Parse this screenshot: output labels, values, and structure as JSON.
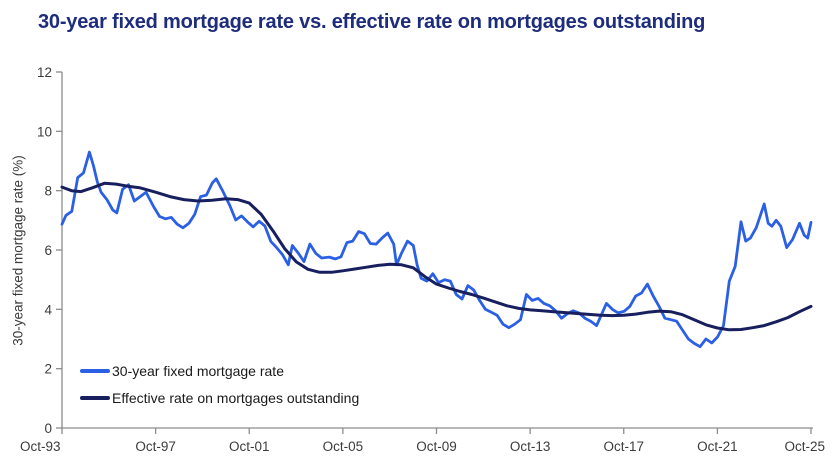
{
  "title": "30-year fixed mortgage rate vs. effective rate on mortgages outstanding",
  "colors": {
    "title": "#1e2c7c",
    "background": "#ffffff",
    "axis": "#8c8c8c",
    "tick_label": "#3c3c3c",
    "legend_text": "#1a1a1a",
    "fixed_rate_blue": "#2b60e4",
    "effective_rate_navy": "#171f5e"
  },
  "chart_data": {
    "type": "line",
    "title": "30-year fixed mortgage rate vs. effective rate on mortgages outstanding",
    "xlabel": "",
    "ylabel": "30-year fixed mortgage rate (%)",
    "ylim": [
      0,
      12
    ],
    "xlim": [
      1993.79,
      2025.79
    ],
    "grid": false,
    "legend_position": "inside-bottom-left",
    "y_ticks": [
      0,
      2,
      4,
      6,
      8,
      10,
      12
    ],
    "x_ticks": [
      {
        "x": 1993.79,
        "label": "Oct-93"
      },
      {
        "x": 1997.79,
        "label": "Oct-97"
      },
      {
        "x": 2001.79,
        "label": "Oct-01"
      },
      {
        "x": 2005.79,
        "label": "Oct-05"
      },
      {
        "x": 2009.79,
        "label": "Oct-09"
      },
      {
        "x": 2013.79,
        "label": "Oct-13"
      },
      {
        "x": 2017.79,
        "label": "Oct-17"
      },
      {
        "x": 2021.79,
        "label": "Oct-21"
      },
      {
        "x": 2025.79,
        "label": "Oct-25"
      }
    ],
    "series": [
      {
        "name": "30-year fixed mortgage rate",
        "color": "#2b60e4",
        "width": 2.8,
        "points": [
          [
            1993.79,
            6.87
          ],
          [
            1993.96,
            7.17
          ],
          [
            1994.21,
            7.3
          ],
          [
            1994.46,
            8.44
          ],
          [
            1994.71,
            8.6
          ],
          [
            1994.96,
            9.3
          ],
          [
            1995.13,
            8.85
          ],
          [
            1995.3,
            8.3
          ],
          [
            1995.46,
            7.95
          ],
          [
            1995.71,
            7.7
          ],
          [
            1995.96,
            7.35
          ],
          [
            1996.13,
            7.25
          ],
          [
            1996.38,
            8.05
          ],
          [
            1996.63,
            8.2
          ],
          [
            1996.88,
            7.65
          ],
          [
            1997.13,
            7.8
          ],
          [
            1997.38,
            7.95
          ],
          [
            1997.71,
            7.45
          ],
          [
            1997.96,
            7.13
          ],
          [
            1998.21,
            7.05
          ],
          [
            1998.46,
            7.1
          ],
          [
            1998.71,
            6.87
          ],
          [
            1998.96,
            6.75
          ],
          [
            1999.21,
            6.9
          ],
          [
            1999.46,
            7.2
          ],
          [
            1999.71,
            7.8
          ],
          [
            1999.96,
            7.85
          ],
          [
            2000.21,
            8.26
          ],
          [
            2000.38,
            8.4
          ],
          [
            2000.63,
            8.03
          ],
          [
            2000.96,
            7.5
          ],
          [
            2001.21,
            7.01
          ],
          [
            2001.46,
            7.15
          ],
          [
            2001.71,
            6.95
          ],
          [
            2001.96,
            6.78
          ],
          [
            2002.21,
            6.97
          ],
          [
            2002.46,
            6.81
          ],
          [
            2002.71,
            6.29
          ],
          [
            2002.96,
            6.08
          ],
          [
            2003.21,
            5.84
          ],
          [
            2003.46,
            5.5
          ],
          [
            2003.63,
            6.15
          ],
          [
            2003.88,
            5.9
          ],
          [
            2004.13,
            5.61
          ],
          [
            2004.38,
            6.2
          ],
          [
            2004.63,
            5.89
          ],
          [
            2004.88,
            5.73
          ],
          [
            2005.21,
            5.76
          ],
          [
            2005.46,
            5.7
          ],
          [
            2005.71,
            5.77
          ],
          [
            2005.96,
            6.25
          ],
          [
            2006.21,
            6.3
          ],
          [
            2006.46,
            6.62
          ],
          [
            2006.71,
            6.55
          ],
          [
            2006.96,
            6.22
          ],
          [
            2007.21,
            6.2
          ],
          [
            2007.46,
            6.4
          ],
          [
            2007.71,
            6.57
          ],
          [
            2007.96,
            6.2
          ],
          [
            2008.08,
            5.5
          ],
          [
            2008.3,
            5.9
          ],
          [
            2008.55,
            6.3
          ],
          [
            2008.8,
            6.15
          ],
          [
            2008.96,
            5.5
          ],
          [
            2009.13,
            5.05
          ],
          [
            2009.38,
            4.95
          ],
          [
            2009.63,
            5.2
          ],
          [
            2009.88,
            4.9
          ],
          [
            2010.13,
            5.0
          ],
          [
            2010.38,
            4.95
          ],
          [
            2010.63,
            4.5
          ],
          [
            2010.88,
            4.35
          ],
          [
            2011.13,
            4.8
          ],
          [
            2011.38,
            4.65
          ],
          [
            2011.63,
            4.3
          ],
          [
            2011.88,
            4.0
          ],
          [
            2012.13,
            3.9
          ],
          [
            2012.38,
            3.8
          ],
          [
            2012.63,
            3.5
          ],
          [
            2012.88,
            3.38
          ],
          [
            2013.13,
            3.5
          ],
          [
            2013.38,
            3.65
          ],
          [
            2013.63,
            4.5
          ],
          [
            2013.88,
            4.3
          ],
          [
            2014.13,
            4.37
          ],
          [
            2014.38,
            4.2
          ],
          [
            2014.63,
            4.12
          ],
          [
            2014.88,
            3.95
          ],
          [
            2015.13,
            3.7
          ],
          [
            2015.38,
            3.85
          ],
          [
            2015.63,
            3.95
          ],
          [
            2015.88,
            3.88
          ],
          [
            2016.13,
            3.7
          ],
          [
            2016.38,
            3.6
          ],
          [
            2016.63,
            3.45
          ],
          [
            2016.88,
            3.9
          ],
          [
            2017.05,
            4.2
          ],
          [
            2017.3,
            4.0
          ],
          [
            2017.55,
            3.88
          ],
          [
            2017.8,
            3.93
          ],
          [
            2018.05,
            4.1
          ],
          [
            2018.3,
            4.45
          ],
          [
            2018.55,
            4.55
          ],
          [
            2018.8,
            4.85
          ],
          [
            2019.05,
            4.45
          ],
          [
            2019.3,
            4.1
          ],
          [
            2019.55,
            3.7
          ],
          [
            2019.8,
            3.65
          ],
          [
            2020.05,
            3.6
          ],
          [
            2020.3,
            3.3
          ],
          [
            2020.55,
            3.0
          ],
          [
            2020.8,
            2.85
          ],
          [
            2021.05,
            2.74
          ],
          [
            2021.3,
            3.0
          ],
          [
            2021.55,
            2.87
          ],
          [
            2021.8,
            3.07
          ],
          [
            2022.05,
            3.45
          ],
          [
            2022.3,
            4.95
          ],
          [
            2022.55,
            5.45
          ],
          [
            2022.8,
            6.95
          ],
          [
            2023.0,
            6.3
          ],
          [
            2023.2,
            6.4
          ],
          [
            2023.45,
            6.75
          ],
          [
            2023.6,
            7.1
          ],
          [
            2023.79,
            7.55
          ],
          [
            2023.96,
            6.9
          ],
          [
            2024.12,
            6.8
          ],
          [
            2024.3,
            7.0
          ],
          [
            2024.5,
            6.8
          ],
          [
            2024.75,
            6.08
          ],
          [
            2025.0,
            6.35
          ],
          [
            2025.3,
            6.9
          ],
          [
            2025.5,
            6.5
          ],
          [
            2025.65,
            6.4
          ],
          [
            2025.79,
            6.93
          ]
        ]
      },
      {
        "name": "Effective rate on mortgages outstanding",
        "color": "#171f5e",
        "width": 3,
        "points": [
          [
            1993.79,
            8.12
          ],
          [
            1994.2,
            8.0
          ],
          [
            1994.6,
            7.97
          ],
          [
            1995.1,
            8.1
          ],
          [
            1995.6,
            8.25
          ],
          [
            1996.1,
            8.22
          ],
          [
            1996.6,
            8.15
          ],
          [
            1997.1,
            8.1
          ],
          [
            1997.79,
            7.95
          ],
          [
            1998.4,
            7.8
          ],
          [
            1999.0,
            7.7
          ],
          [
            1999.6,
            7.65
          ],
          [
            2000.2,
            7.68
          ],
          [
            2000.8,
            7.73
          ],
          [
            2001.3,
            7.7
          ],
          [
            2001.79,
            7.58
          ],
          [
            2002.3,
            7.2
          ],
          [
            2002.8,
            6.65
          ],
          [
            2003.3,
            6.05
          ],
          [
            2003.8,
            5.6
          ],
          [
            2004.3,
            5.35
          ],
          [
            2004.8,
            5.25
          ],
          [
            2005.3,
            5.25
          ],
          [
            2005.79,
            5.3
          ],
          [
            2006.3,
            5.36
          ],
          [
            2006.8,
            5.42
          ],
          [
            2007.3,
            5.48
          ],
          [
            2007.8,
            5.52
          ],
          [
            2008.3,
            5.5
          ],
          [
            2008.8,
            5.4
          ],
          [
            2009.3,
            5.1
          ],
          [
            2009.79,
            4.85
          ],
          [
            2010.3,
            4.72
          ],
          [
            2010.8,
            4.6
          ],
          [
            2011.3,
            4.5
          ],
          [
            2011.8,
            4.38
          ],
          [
            2012.3,
            4.25
          ],
          [
            2012.8,
            4.12
          ],
          [
            2013.3,
            4.03
          ],
          [
            2013.79,
            3.98
          ],
          [
            2014.3,
            3.95
          ],
          [
            2014.8,
            3.92
          ],
          [
            2015.3,
            3.89
          ],
          [
            2015.8,
            3.86
          ],
          [
            2016.3,
            3.83
          ],
          [
            2016.8,
            3.8
          ],
          [
            2017.3,
            3.79
          ],
          [
            2017.79,
            3.8
          ],
          [
            2018.3,
            3.84
          ],
          [
            2018.8,
            3.9
          ],
          [
            2019.3,
            3.94
          ],
          [
            2019.8,
            3.92
          ],
          [
            2020.3,
            3.82
          ],
          [
            2020.8,
            3.65
          ],
          [
            2021.3,
            3.48
          ],
          [
            2021.79,
            3.37
          ],
          [
            2022.3,
            3.31
          ],
          [
            2022.8,
            3.32
          ],
          [
            2023.3,
            3.38
          ],
          [
            2023.79,
            3.45
          ],
          [
            2024.3,
            3.58
          ],
          [
            2024.8,
            3.72
          ],
          [
            2025.3,
            3.92
          ],
          [
            2025.79,
            4.1
          ]
        ]
      }
    ]
  },
  "legend": {
    "items": [
      {
        "label": "30-year fixed mortgage rate"
      },
      {
        "label": "Effective rate on mortgages outstanding"
      }
    ]
  }
}
